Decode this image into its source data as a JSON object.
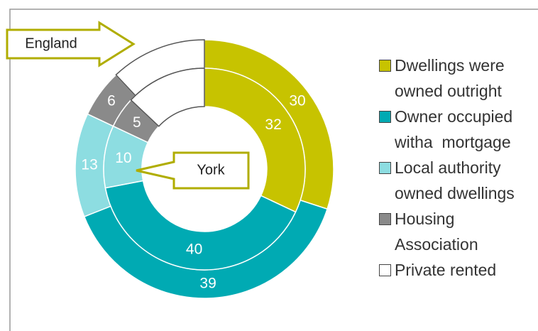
{
  "chart_data": {
    "type": "donut",
    "categories": [
      "Dwellings were owned outright",
      "Owner occupied witha  mortgage",
      "Local authority owned dwellings",
      "Housing Association",
      "Private rented"
    ],
    "colors": [
      "#c7c300",
      "#00aab3",
      "#8ddde1",
      "#8a8a8a",
      "#ffffff"
    ],
    "series": [
      {
        "name": "England",
        "values": [
          30,
          39,
          13,
          6,
          12
        ],
        "value_labels": [
          "30",
          "39",
          "13",
          "6",
          null
        ]
      },
      {
        "name": "York",
        "values": [
          32,
          40,
          10,
          5,
          13
        ],
        "value_labels": [
          "32",
          "40",
          "10",
          "5",
          null
        ]
      }
    ]
  }
}
